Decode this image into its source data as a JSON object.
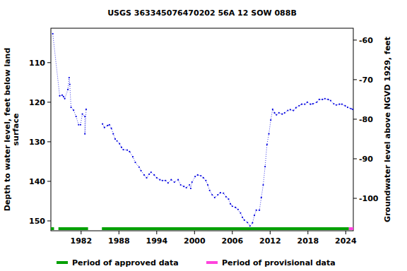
{
  "chart_data": {
    "type": "line",
    "title": "USGS 363345076470202 56A 12 SOW 088B",
    "ylabel": [
      "Depth to water level, feet below land",
      "surface"
    ],
    "y2label": "Groundwater level above NGVD 1929, feet",
    "marker": "dot",
    "line_style": "dotted",
    "grid": false,
    "xlim": [
      1977.2,
      2025.2
    ],
    "xticks": [
      1982,
      1988,
      1994,
      2000,
      2006,
      2012,
      2018,
      2024
    ],
    "ylim": [
      152.5,
      101.3
    ],
    "yticks": [
      110,
      120,
      130,
      140,
      150
    ],
    "y2lim": [
      -108.2,
      -57.0
    ],
    "y2ticks": [
      -60,
      -70,
      -80,
      -90,
      -100
    ],
    "x": [
      1977.5,
      1978.6,
      1979.0,
      1979.2,
      1979.4,
      1979.9,
      1980.1,
      1980.2,
      1980.4,
      1980.8,
      1981.2,
      1981.6,
      1981.9,
      1982.2,
      1982.6,
      1982.6,
      1982.8,
      1984.0,
      1985.4,
      1985.7,
      1986.2,
      1986.5,
      1986.8,
      1987.1,
      1987.4,
      1987.7,
      1988.1,
      1988.4,
      1988.7,
      1989.3,
      1989.7,
      1990.2,
      1990.6,
      1991.2,
      1991.5,
      1992.0,
      1992.4,
      1992.8,
      1993.1,
      1993.6,
      1994.0,
      1994.5,
      1994.9,
      1995.4,
      1995.8,
      1996.3,
      1996.8,
      1997.4,
      1997.8,
      1998.3,
      1998.7,
      1999.2,
      1999.4,
      1999.6,
      2000.1,
      2000.5,
      2001.0,
      2001.4,
      2001.8,
      2002.1,
      2002.4,
      2002.8,
      2003.2,
      2003.7,
      2004.1,
      2004.6,
      2005.0,
      2005.4,
      2005.7,
      2006.0,
      2006.5,
      2006.9,
      2007.3,
      2007.6,
      2007.9,
      2008.4,
      2008.8,
      2009.2,
      2009.5,
      2009.8,
      2010.3,
      2010.6,
      2010.9,
      2011.2,
      2011.5,
      2011.8,
      2012.1,
      2012.4,
      2012.7,
      2013.0,
      2013.4,
      2013.9,
      2014.3,
      2014.8,
      2015.2,
      2015.7,
      2016.1,
      2016.6,
      2017.0,
      2017.5,
      2017.9,
      2018.4,
      2018.8,
      2019.4,
      2019.8,
      2020.3,
      2020.7,
      2021.2,
      2021.6,
      2022.1,
      2022.5,
      2023.0,
      2023.4,
      2023.9,
      2024.3,
      2024.8,
      2025.1
    ],
    "series": [
      {
        "name": "Depth to water level",
        "color": "#0000e0",
        "values": [
          102.7,
          118.4,
          118.2,
          118.6,
          119.1,
          116.8,
          113.8,
          115.5,
          121.3,
          122.0,
          123.6,
          125.7,
          125.7,
          123.0,
          123.6,
          128.0,
          121.8,
          null,
          125.5,
          126.4,
          125.9,
          125.7,
          126.6,
          128.0,
          129.3,
          129.8,
          130.5,
          131.4,
          132.0,
          132.1,
          132.5,
          133.8,
          135.2,
          136.4,
          137.3,
          138.4,
          139.1,
          138.2,
          137.7,
          138.4,
          139.1,
          139.6,
          139.8,
          139.8,
          140.4,
          139.6,
          140.2,
          139.6,
          140.9,
          141.3,
          141.6,
          140.9,
          141.8,
          140.2,
          138.8,
          138.4,
          138.6,
          139.1,
          139.8,
          140.9,
          142.3,
          143.4,
          144.1,
          143.4,
          142.9,
          143.0,
          143.9,
          144.5,
          145.7,
          146.3,
          146.6,
          147.1,
          148.0,
          149.1,
          149.8,
          150.4,
          151.3,
          150.5,
          148.6,
          147.3,
          147.3,
          144.1,
          140.9,
          136.3,
          130.7,
          128.0,
          124.5,
          121.8,
          122.7,
          123.2,
          122.7,
          123.0,
          122.7,
          122.1,
          121.9,
          122.1,
          121.4,
          120.9,
          120.5,
          120.5,
          120.0,
          120.5,
          120.4,
          120.0,
          119.3,
          119.3,
          119.1,
          119.3,
          119.6,
          120.4,
          120.7,
          120.5,
          120.5,
          120.9,
          121.3,
          121.6,
          121.8
        ]
      }
    ],
    "periods": [
      {
        "name": "Period of approved data",
        "color": "#00a000",
        "ranges": [
          [
            1977.2,
            1977.7
          ],
          [
            1978.4,
            1983.1
          ],
          [
            1985.3,
            2024.5
          ]
        ]
      },
      {
        "name": "Period of provisional data",
        "color": "#ff44dd",
        "ranges": [
          [
            2024.5,
            2025.2
          ]
        ]
      }
    ]
  }
}
